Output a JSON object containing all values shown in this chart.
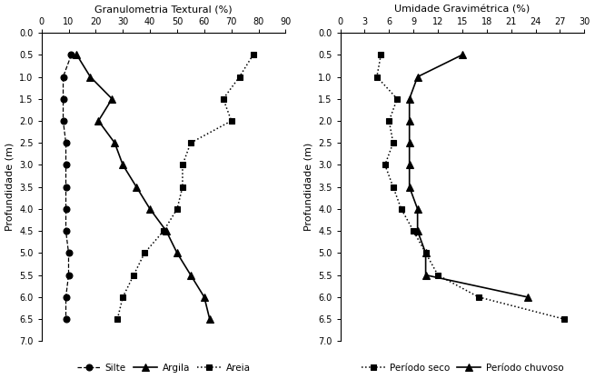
{
  "left_title": "Granulometria Textural (%)",
  "right_title": "Umidade Gravimétrica (%)",
  "ylabel": "Profundidade (m)",
  "silte_depth": [
    0.5,
    1.0,
    1.5,
    2.0,
    2.5,
    3.0,
    3.5,
    4.0,
    4.5,
    5.0,
    5.5,
    6.0,
    6.5
  ],
  "silte_values": [
    11,
    8,
    8,
    8,
    9,
    9,
    9,
    9,
    9,
    10,
    10,
    9,
    9
  ],
  "argila_depth": [
    0.5,
    1.0,
    1.5,
    2.0,
    2.5,
    3.0,
    3.5,
    4.0,
    4.5,
    5.0,
    5.5,
    6.0,
    6.5
  ],
  "argila_values": [
    13,
    18,
    26,
    21,
    27,
    30,
    35,
    40,
    46,
    50,
    55,
    60,
    62
  ],
  "areia_depth": [
    0.5,
    1.0,
    1.5,
    2.0,
    2.5,
    3.0,
    3.5,
    4.0,
    4.5,
    5.0,
    5.5,
    6.0,
    6.5
  ],
  "areia_values": [
    78,
    73,
    67,
    70,
    55,
    52,
    52,
    50,
    45,
    38,
    34,
    30,
    28
  ],
  "left_xlim": [
    0,
    90
  ],
  "left_xticks": [
    0,
    10,
    20,
    30,
    40,
    50,
    60,
    70,
    80,
    90
  ],
  "periodo_seco_depth": [
    0.5,
    1.0,
    1.5,
    2.0,
    2.5,
    3.0,
    3.5,
    4.0,
    4.5,
    5.0,
    5.5,
    6.0,
    6.5
  ],
  "periodo_seco_values": [
    5.0,
    4.5,
    7.0,
    6.0,
    6.5,
    5.5,
    6.5,
    7.5,
    9.0,
    10.5,
    12.0,
    17.0,
    27.5
  ],
  "periodo_chuvoso_depth": [
    0.5,
    1.0,
    1.5,
    2.0,
    2.5,
    3.0,
    3.5,
    4.0,
    4.5,
    5.0,
    5.5,
    6.0
  ],
  "periodo_chuvoso_values": [
    15.0,
    9.5,
    8.5,
    8.5,
    8.5,
    8.5,
    8.5,
    9.5,
    9.5,
    10.5,
    10.5,
    23.0
  ],
  "right_xlim": [
    0,
    30
  ],
  "right_xticks": [
    0,
    3,
    6,
    9,
    12,
    15,
    18,
    21,
    24,
    27,
    30
  ],
  "ylim": [
    7.0,
    0.0
  ],
  "yticks": [
    0.0,
    0.5,
    1.0,
    1.5,
    2.0,
    2.5,
    3.0,
    3.5,
    4.0,
    4.5,
    5.0,
    5.5,
    6.0,
    6.5,
    7.0
  ],
  "color": "#000000",
  "bg_color": "#ffffff"
}
